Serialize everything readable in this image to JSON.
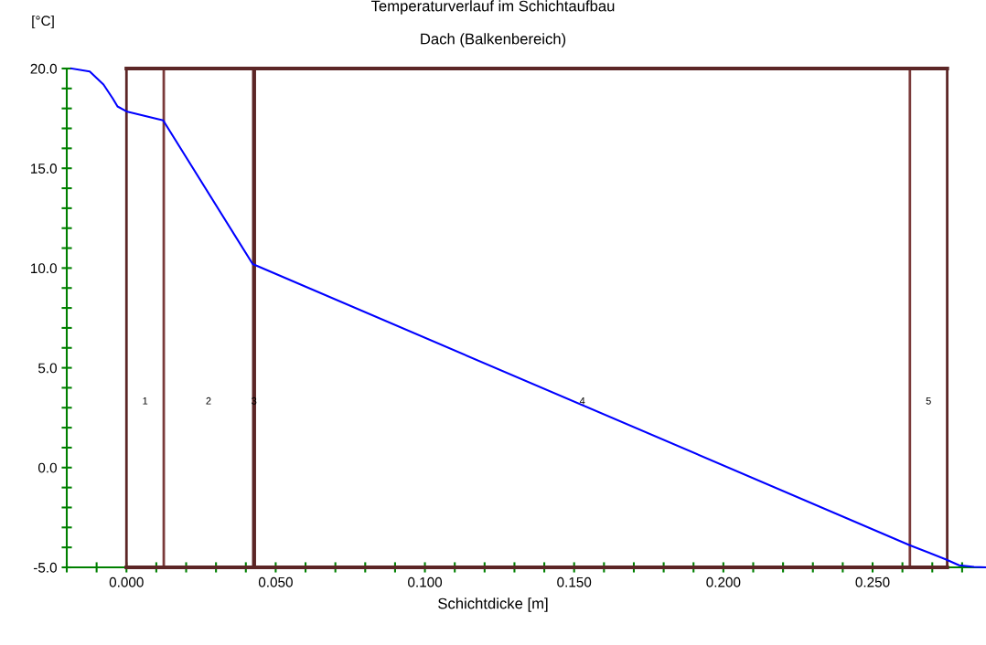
{
  "chart_data": {
    "type": "line",
    "title": "Temperaturverlauf im Schichtaufbau",
    "subtitle": "Dach (Balkenbereich)",
    "xlabel": "Schichtdicke [m]",
    "ylabel": "[°C]",
    "x": [
      -0.0184,
      -0.0123,
      -0.0077,
      -0.0046,
      -0.003,
      0,
      0.0123,
      0.0423,
      0.2626,
      0.2745,
      0.279,
      0.284,
      0.2877
    ],
    "series": [
      {
        "color": "#0000ff",
        "values": [
          20.0,
          19.85,
          19.2,
          18.5,
          18.1,
          17.85,
          17.4,
          10.2,
          -3.9,
          -4.6,
          -4.9,
          -4.98,
          -5.0
        ]
      }
    ],
    "xlim": [
      -0.02,
      0.288
    ],
    "ylim": [
      -5,
      20
    ],
    "xticks": [
      {
        "value": -0.02,
        "label": null
      },
      {
        "value": -0.01,
        "label": null
      },
      {
        "value": 0,
        "label": "0.000"
      },
      {
        "value": 0.01,
        "label": null
      },
      {
        "value": 0.02,
        "label": null
      },
      {
        "value": 0.03,
        "label": null
      },
      {
        "value": 0.04,
        "label": null
      },
      {
        "value": 0.05,
        "label": "0.050"
      },
      {
        "value": 0.06,
        "label": null
      },
      {
        "value": 0.07,
        "label": null
      },
      {
        "value": 0.08,
        "label": null
      },
      {
        "value": 0.09,
        "label": null
      },
      {
        "value": 0.1,
        "label": "0.100"
      },
      {
        "value": 0.11,
        "label": null
      },
      {
        "value": 0.12,
        "label": null
      },
      {
        "value": 0.13,
        "label": null
      },
      {
        "value": 0.14,
        "label": null
      },
      {
        "value": 0.15,
        "label": "0.150"
      },
      {
        "value": 0.16,
        "label": null
      },
      {
        "value": 0.17,
        "label": null
      },
      {
        "value": 0.18,
        "label": null
      },
      {
        "value": 0.19,
        "label": null
      },
      {
        "value": 0.2,
        "label": "0.200"
      },
      {
        "value": 0.21,
        "label": null
      },
      {
        "value": 0.22,
        "label": null
      },
      {
        "value": 0.23,
        "label": null
      },
      {
        "value": 0.24,
        "label": null
      },
      {
        "value": 0.25,
        "label": "0.250"
      },
      {
        "value": 0.26,
        "label": null
      },
      {
        "value": 0.27,
        "label": null
      },
      {
        "value": 0.28,
        "label": null
      }
    ],
    "yticks": [
      {
        "value": -5,
        "label": "-5.0"
      },
      {
        "value": -4,
        "label": null
      },
      {
        "value": -3,
        "label": null
      },
      {
        "value": -2,
        "label": null
      },
      {
        "value": -1,
        "label": null
      },
      {
        "value": 0,
        "label": "0.0"
      },
      {
        "value": 1,
        "label": null
      },
      {
        "value": 2,
        "label": null
      },
      {
        "value": 3,
        "label": null
      },
      {
        "value": 4,
        "label": null
      },
      {
        "value": 5,
        "label": "5.0"
      },
      {
        "value": 6,
        "label": null
      },
      {
        "value": 7,
        "label": null
      },
      {
        "value": 8,
        "label": null
      },
      {
        "value": 9,
        "label": null
      },
      {
        "value": 10,
        "label": "10.0"
      },
      {
        "value": 11,
        "label": null
      },
      {
        "value": 12,
        "label": null
      },
      {
        "value": 13,
        "label": null
      },
      {
        "value": 14,
        "label": null
      },
      {
        "value": 15,
        "label": "15.0"
      },
      {
        "value": 16,
        "label": null
      },
      {
        "value": 17,
        "label": null
      },
      {
        "value": 18,
        "label": null
      },
      {
        "value": 19,
        "label": null
      },
      {
        "value": 20,
        "label": "20.0"
      }
    ],
    "ref_lines": [
      {
        "axis": "x",
        "value": 0,
        "label": null,
        "color": "#5c2626"
      },
      {
        "axis": "x",
        "value": 0.0125,
        "label": null,
        "color": "#7a3a3a"
      },
      {
        "axis": "x",
        "value": 0.0425,
        "label": null,
        "color": "#5c2626"
      },
      {
        "axis": "x",
        "value": 0.043,
        "label": null,
        "color": "#5c2626"
      },
      {
        "axis": "x",
        "value": 0.2625,
        "label": null,
        "color": "#7a3a3a"
      },
      {
        "axis": "x",
        "value": 0.275,
        "label": null,
        "color": "#5c2626"
      },
      {
        "axis": "y",
        "value": 20,
        "label": null,
        "color": "#5c2626"
      },
      {
        "axis": "y",
        "value": -5,
        "label": null,
        "color": "#5c2626"
      }
    ],
    "annotations": [
      "1",
      "2",
      "3",
      "4",
      "5"
    ],
    "grid": false,
    "marker": "none",
    "line_style": "solid"
  }
}
